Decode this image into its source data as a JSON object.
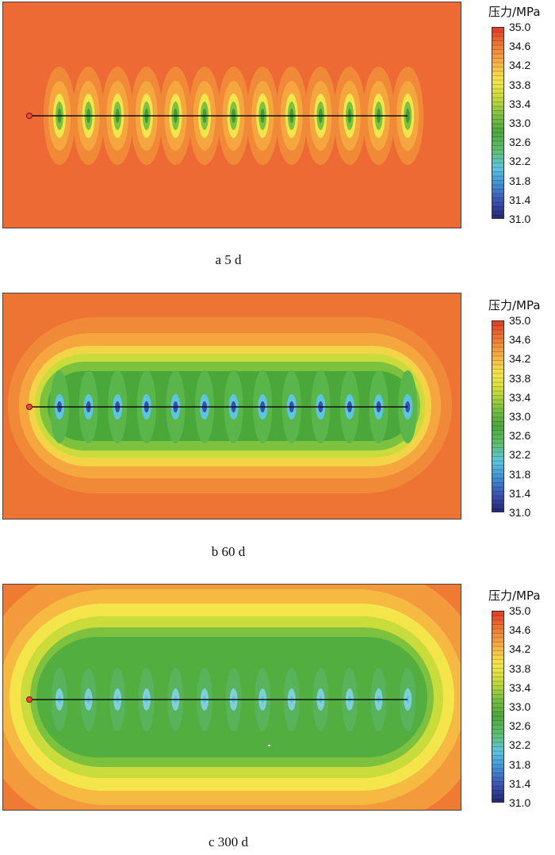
{
  "colors": {
    "scale": [
      "#22236e",
      "#3a4fae",
      "#3f8fd3",
      "#5cc6e0",
      "#5fbf6a",
      "#4aa83b",
      "#7cc23e",
      "#c9dc3b",
      "#f4e64a",
      "#f7b043",
      "#ee7a34",
      "#e23a24"
    ]
  },
  "legend": {
    "title": "压力/MPa",
    "ticks": [
      "35.0",
      "34.6",
      "34.2",
      "33.8",
      "33.4",
      "33.0",
      "32.6",
      "32.2",
      "31.8",
      "31.4",
      "31.0"
    ],
    "min": 31.0,
    "max": 35.0
  },
  "chart_data": [
    {
      "type": "heatmap",
      "caption": "a 5 d",
      "colorbar_label": "压力/MPa",
      "colorbar_range": [
        31.0,
        35.0
      ],
      "fracture_count": 13,
      "background_pressure": 34.8,
      "min_pressure": 32.4
    },
    {
      "type": "heatmap",
      "caption": "b 60 d",
      "colorbar_label": "压力/MPa",
      "colorbar_range": [
        31.0,
        35.0
      ],
      "fracture_count": 13,
      "background_pressure": 34.4,
      "min_pressure": 31.4
    },
    {
      "type": "heatmap",
      "caption": "c 300 d",
      "colorbar_label": "压力/MPa",
      "colorbar_range": [
        31.0,
        35.0
      ],
      "fracture_count": 13,
      "background_pressure": 34.3,
      "min_pressure": 32.0
    }
  ]
}
